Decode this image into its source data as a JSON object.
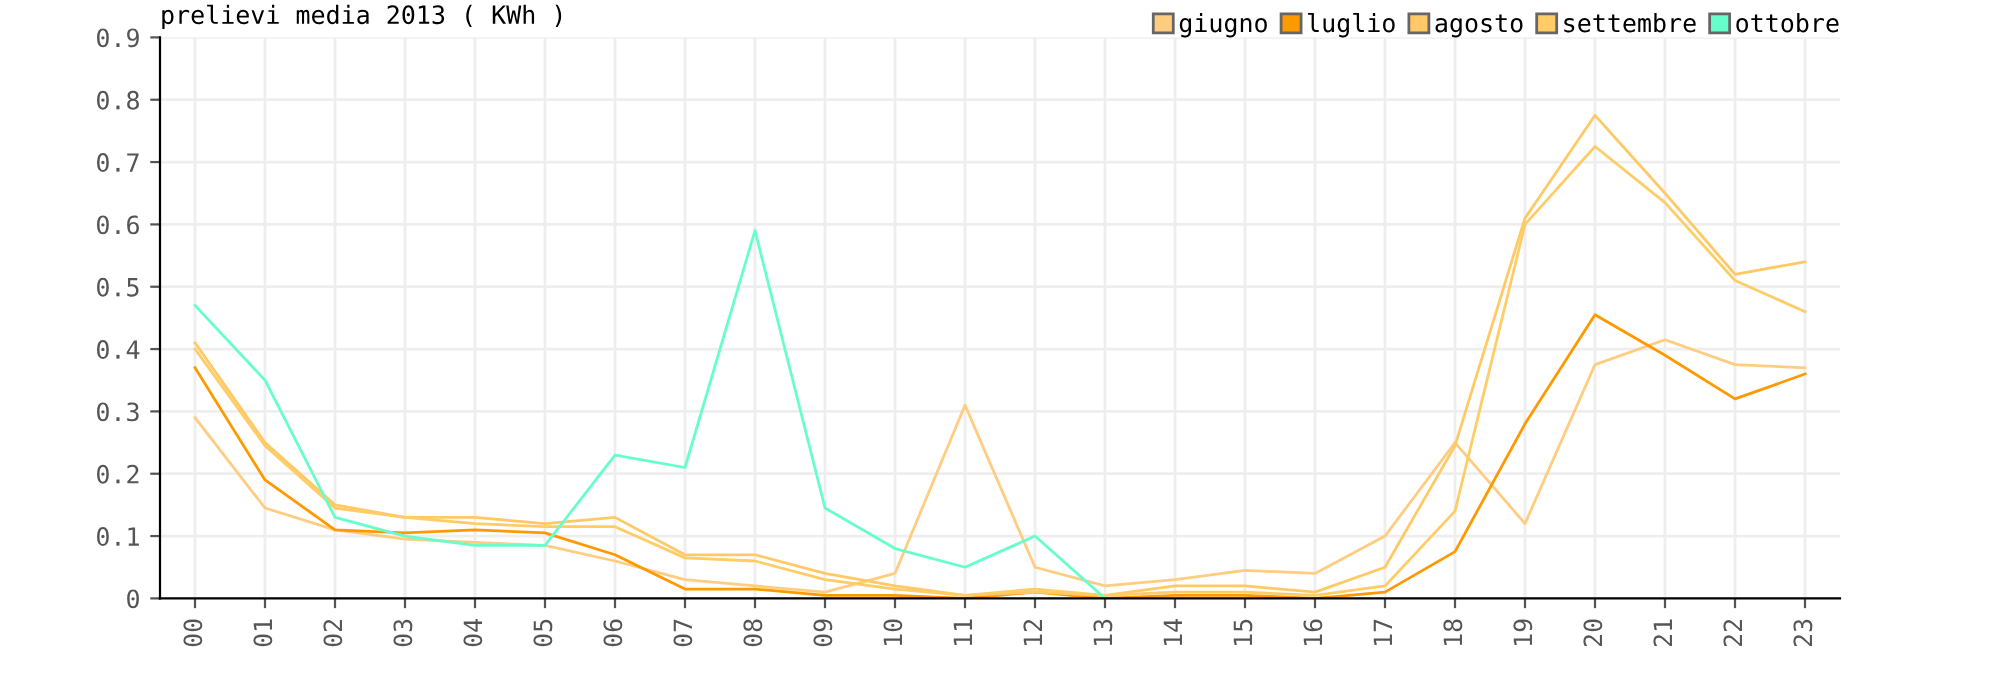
{
  "chart_data": {
    "type": "line",
    "title": "prelievi media 2013 ( KWh )",
    "categories": [
      "00",
      "01",
      "02",
      "03",
      "04",
      "05",
      "06",
      "07",
      "08",
      "09",
      "10",
      "11",
      "12",
      "13",
      "14",
      "15",
      "16",
      "17",
      "18",
      "19",
      "20",
      "21",
      "22",
      "23"
    ],
    "series": [
      {
        "name": "giugno",
        "color": "#ffcc80",
        "values": [
          0.29,
          0.145,
          0.11,
          0.095,
          0.09,
          0.085,
          0.06,
          0.03,
          0.02,
          0.01,
          0.04,
          0.31,
          0.05,
          0.02,
          0.03,
          0.045,
          0.04,
          0.1,
          0.25,
          0.12,
          0.375,
          0.415,
          0.375,
          0.37
        ]
      },
      {
        "name": "luglio",
        "color": "#ff9900",
        "values": [
          0.37,
          0.19,
          0.11,
          0.105,
          0.11,
          0.105,
          0.07,
          0.015,
          0.015,
          0.005,
          0.005,
          0,
          0.01,
          0,
          0.005,
          0.005,
          0,
          0.01,
          0.075,
          0.28,
          0.455,
          0.39,
          0.32,
          0.36
        ]
      },
      {
        "name": "agosto",
        "color": "#ffc966",
        "values": [
          0.41,
          0.25,
          0.15,
          0.13,
          0.13,
          0.12,
          0.13,
          0.07,
          0.07,
          0.04,
          0.02,
          0.005,
          0.01,
          0.005,
          0.02,
          0.02,
          0.01,
          0.05,
          0.245,
          0.61,
          0.775,
          0.65,
          0.52,
          0.54
        ]
      },
      {
        "name": "settembre",
        "color": "#ffcc66",
        "values": [
          0.4,
          0.245,
          0.145,
          0.13,
          0.12,
          0.115,
          0.115,
          0.065,
          0.06,
          0.03,
          0.015,
          0.005,
          0.015,
          0.005,
          0.01,
          0.01,
          0.005,
          0.02,
          0.14,
          0.6,
          0.725,
          0.635,
          0.51,
          0.46
        ]
      },
      {
        "name": "ottobre",
        "color": "#66ffcc",
        "values": [
          0.47,
          0.35,
          0.13,
          0.1,
          0.085,
          0.085,
          0.23,
          0.21,
          0.59,
          0.145,
          0.08,
          0.05,
          0.1,
          0.0,
          null,
          null,
          null,
          null,
          null,
          null,
          null,
          null,
          null,
          null
        ]
      }
    ],
    "ylim": [
      0,
      0.9
    ],
    "yticks": [
      0,
      0.1,
      0.2,
      0.3,
      0.4,
      0.5,
      0.6,
      0.7,
      0.8,
      0.9
    ],
    "grid": true,
    "legend": "top right",
    "marker": "none",
    "line_style": "solid"
  }
}
